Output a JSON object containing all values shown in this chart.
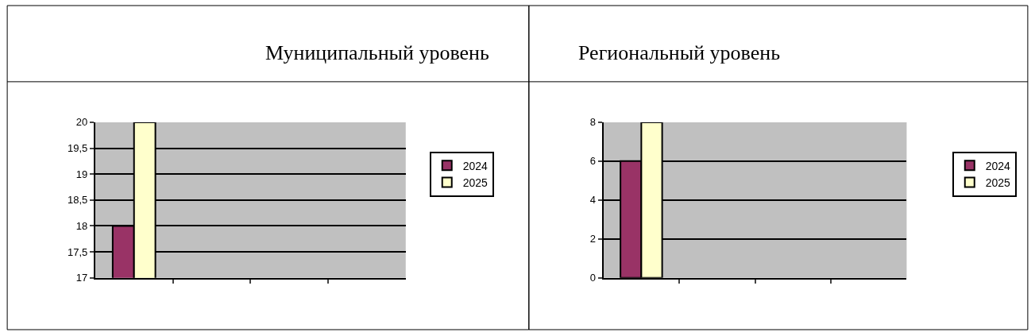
{
  "chart_data": [
    {
      "type": "bar",
      "title": "Муниципальный уровень",
      "categories": [
        null,
        null,
        null,
        null
      ],
      "series": [
        {
          "name": "2024",
          "color": "#993366",
          "values": [
            18,
            null,
            null,
            null
          ]
        },
        {
          "name": "2025",
          "color": "#ffffcc",
          "values": [
            20,
            null,
            null,
            null
          ]
        }
      ],
      "ylim": [
        17,
        20
      ],
      "yticks": [
        17,
        {
          "value": 17.5,
          "label": "17,5"
        },
        18,
        {
          "value": 18.5,
          "label": "18,5"
        },
        19,
        {
          "value": 19.5,
          "label": "19,5"
        },
        20
      ],
      "grid": "y",
      "legend": "right",
      "tick_labels": "y"
    },
    {
      "type": "bar",
      "title": "Региональный уровень",
      "categories": [
        null,
        null,
        null,
        null
      ],
      "series": [
        {
          "name": "2024",
          "color": "#993366",
          "values": [
            6,
            null,
            null,
            null
          ]
        },
        {
          "name": "2025",
          "color": "#ffffcc",
          "values": [
            8,
            null,
            null,
            null
          ]
        }
      ],
      "ylim": [
        0,
        8
      ],
      "yticks": [
        0,
        2,
        4,
        6,
        8
      ],
      "grid": "y",
      "legend": "right",
      "tick_labels": "y"
    }
  ]
}
